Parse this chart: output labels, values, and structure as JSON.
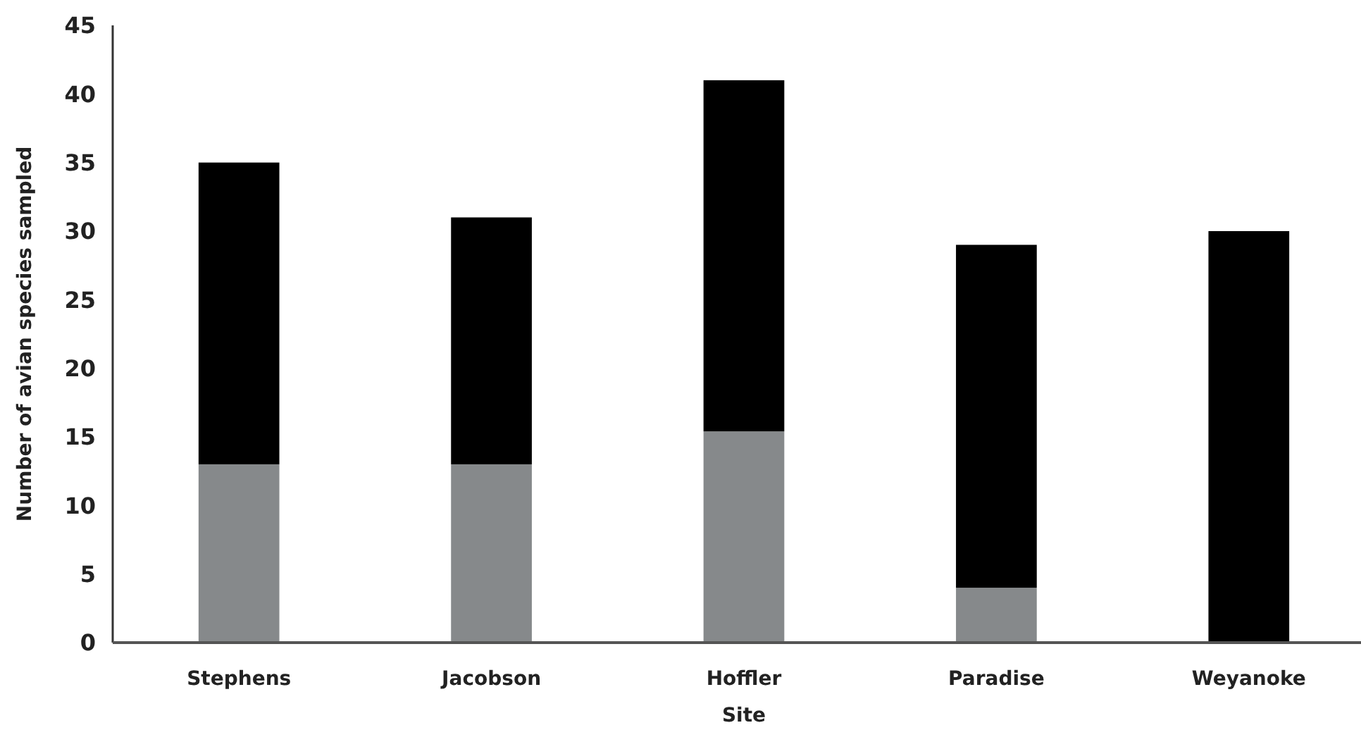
{
  "chart_data": {
    "type": "bar",
    "stacked": true,
    "xlabel": "Site",
    "ylabel": "Number of avian species sampled",
    "categories": [
      "Stephens",
      "Jacobson",
      "Hoffler",
      "Paradise",
      "Weyanoke"
    ],
    "series": [
      {
        "color": "#86898b",
        "values": [
          13,
          13,
          15.4,
          4,
          0
        ]
      },
      {
        "color": "#000000",
        "values": [
          22,
          18,
          25.6,
          25,
          30
        ]
      }
    ],
    "ylim": [
      0,
      45
    ],
    "yticks": [
      0,
      5,
      10,
      15,
      20,
      25,
      30,
      35,
      40,
      45
    ],
    "grid": false
  }
}
